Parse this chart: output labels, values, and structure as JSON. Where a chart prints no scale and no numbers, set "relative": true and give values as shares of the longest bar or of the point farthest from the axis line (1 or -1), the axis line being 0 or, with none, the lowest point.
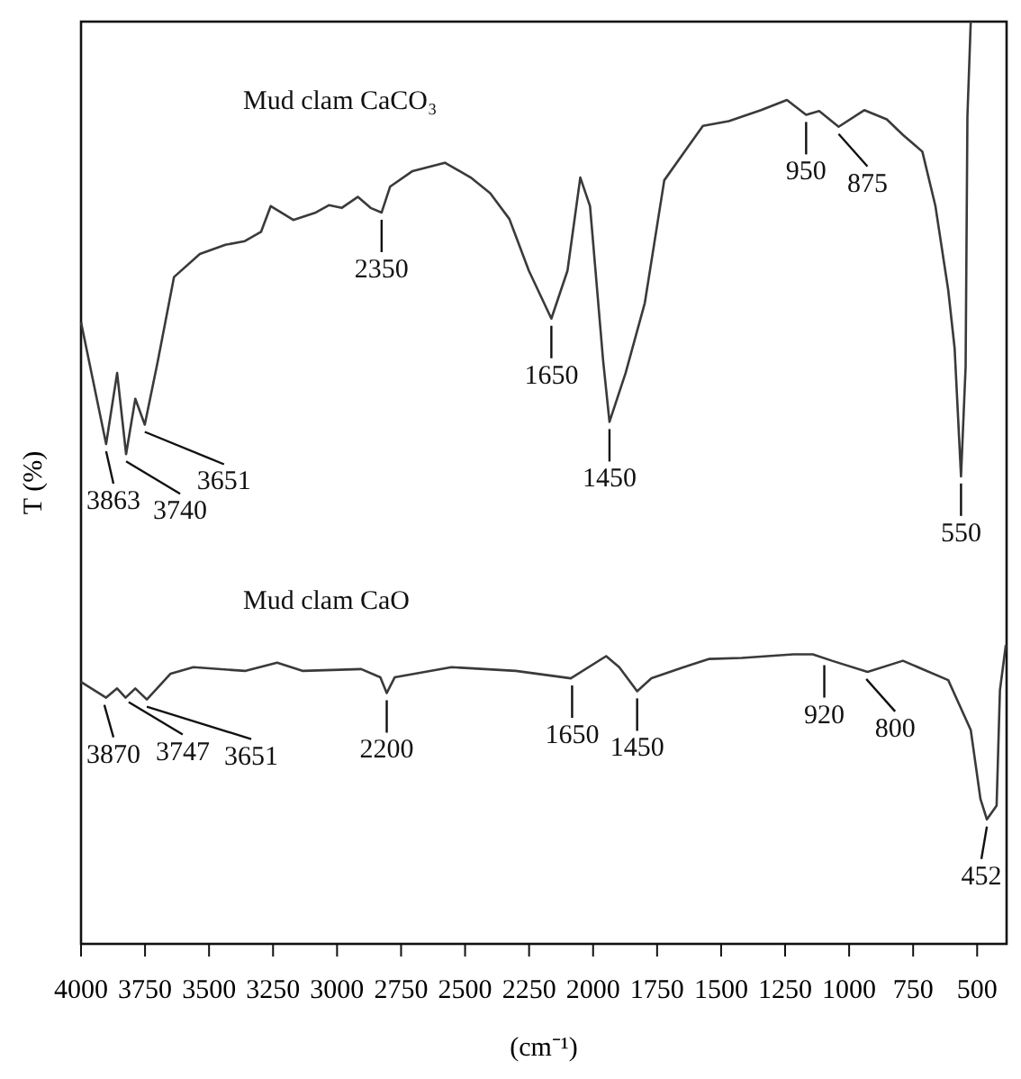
{
  "chart_data": {
    "type": "line",
    "relative": true,
    "xlabel": "(cm⁻¹)",
    "ylabel": "T (%)",
    "xlim": [
      4000,
      385
    ],
    "xticks": [
      4000,
      3750,
      3500,
      3250,
      3000,
      2750,
      2500,
      2250,
      2000,
      1750,
      1500,
      1250,
      1000,
      750,
      500
    ],
    "series": [
      {
        "name": "Mud clam CaCO₃",
        "color": "#3a3a3a",
        "x": [
          4000,
          3902,
          3859,
          3824,
          3788,
          3751,
          3700,
          3637,
          3536,
          3436,
          3360,
          3297,
          3259,
          3171,
          3083,
          3032,
          2982,
          2919,
          2869,
          2826,
          2793,
          2705,
          2579,
          2478,
          2402,
          2327,
          2251,
          2163,
          2100,
          2050,
          2012,
          1961,
          1936,
          1873,
          1798,
          1722,
          1571,
          1470,
          1344,
          1243,
          1168,
          1117,
          1041,
          941,
          853,
          789,
          714,
          663,
          613,
          588,
          563,
          545,
          538,
          525
        ],
        "values": [
          0.674,
          0.542,
          0.619,
          0.531,
          0.591,
          0.563,
          0.632,
          0.723,
          0.748,
          0.758,
          0.762,
          0.772,
          0.8,
          0.785,
          0.793,
          0.801,
          0.798,
          0.81,
          0.798,
          0.793,
          0.821,
          0.838,
          0.847,
          0.831,
          0.814,
          0.786,
          0.73,
          0.678,
          0.73,
          0.831,
          0.8,
          0.633,
          0.566,
          0.619,
          0.695,
          0.828,
          0.887,
          0.892,
          0.904,
          0.915,
          0.899,
          0.903,
          0.886,
          0.904,
          0.894,
          0.877,
          0.859,
          0.8,
          0.709,
          0.646,
          0.507,
          0.626,
          0.897,
          1
        ]
      },
      {
        "name": "Mud clam CaO",
        "color": "#3a3a3a",
        "x": [
          4000,
          3902,
          3859,
          3826,
          3788,
          3743,
          3650,
          3561,
          3360,
          3234,
          3133,
          2906,
          2831,
          2806,
          2775,
          2553,
          2302,
          2087,
          1949,
          1898,
          1828,
          1772,
          1646,
          1546,
          1420,
          1218,
          1142,
          1067,
          928,
          790,
          613,
          525,
          487,
          462,
          424,
          411,
          388
        ],
        "values": [
          0.284,
          0.267,
          0.277,
          0.267,
          0.277,
          0.265,
          0.293,
          0.3,
          0.296,
          0.305,
          0.296,
          0.298,
          0.289,
          0.272,
          0.289,
          0.3,
          0.296,
          0.288,
          0.312,
          0.3,
          0.274,
          0.288,
          0.3,
          0.309,
          0.31,
          0.314,
          0.314,
          0.307,
          0.295,
          0.307,
          0.286,
          0.232,
          0.157,
          0.135,
          0.15,
          0.275,
          0.324
        ]
      }
    ],
    "annotations": [
      {
        "text": "3863",
        "x": 3902,
        "y": 0.542
      },
      {
        "text": "3740",
        "x": 3824,
        "y": 0.531
      },
      {
        "text": "3651",
        "x": 3751,
        "y": 0.563
      },
      {
        "text": "2350",
        "x": 2826,
        "y": 0.793
      },
      {
        "text": "1650",
        "x": 2163,
        "y": 0.678
      },
      {
        "text": "1450",
        "x": 1936,
        "y": 0.566
      },
      {
        "text": "950",
        "x": 1168,
        "y": 0.899
      },
      {
        "text": "875",
        "x": 1041,
        "y": 0.886
      },
      {
        "text": "550",
        "x": 563,
        "y": 0.507
      },
      {
        "text": "3870",
        "x": 3909,
        "y": 0.267
      },
      {
        "text": "3747",
        "x": 3814,
        "y": 0.27
      },
      {
        "text": "3651",
        "x": 3743,
        "y": 0.265
      },
      {
        "text": "2200",
        "x": 2806,
        "y": 0.272
      },
      {
        "text": "1650",
        "x": 2082,
        "y": 0.288
      },
      {
        "text": "1450",
        "x": 1828,
        "y": 0.274
      },
      {
        "text": "920",
        "x": 1097,
        "y": 0.31
      },
      {
        "text": "800",
        "x": 933,
        "y": 0.295
      },
      {
        "text": "452",
        "x": 462,
        "y": 0.135
      }
    ]
  }
}
